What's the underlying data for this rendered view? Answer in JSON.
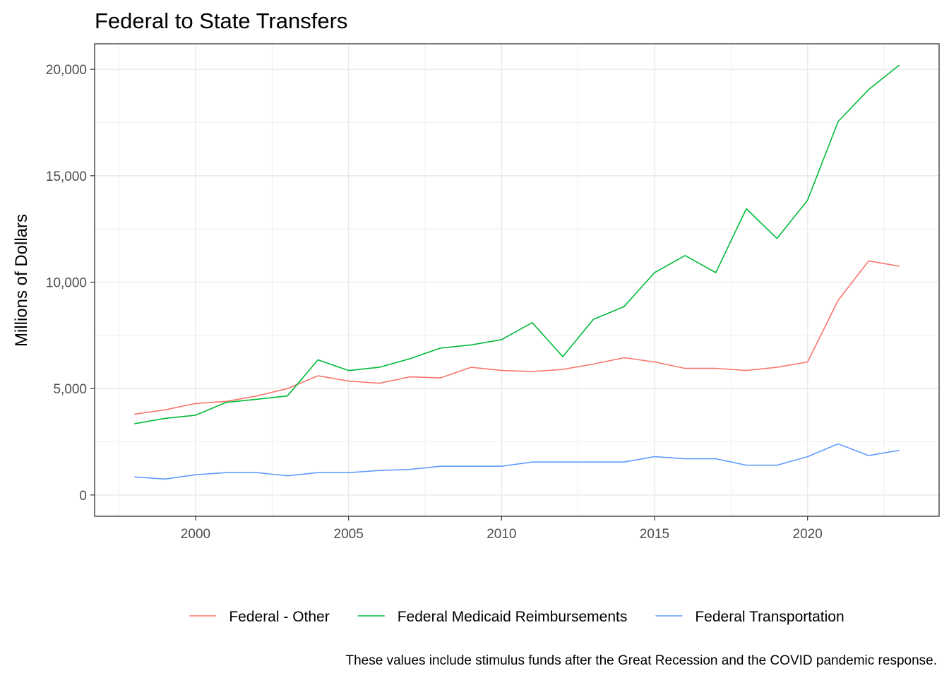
{
  "chart_data": {
    "type": "line",
    "title": "Federal to State Transfers",
    "xlabel": "",
    "ylabel": "Millions of Dollars",
    "caption": "These values include stimulus funds after the Great Recession and the COVID pandemic response.",
    "x": [
      1998,
      1999,
      2000,
      2001,
      2002,
      2003,
      2004,
      2005,
      2006,
      2007,
      2008,
      2009,
      2010,
      2011,
      2012,
      2013,
      2014,
      2015,
      2016,
      2017,
      2018,
      2019,
      2020,
      2021,
      2022,
      2023
    ],
    "xlim": [
      1996.7,
      2024.3
    ],
    "ylim": [
      -1000,
      21200
    ],
    "x_ticks": [
      2000,
      2005,
      2010,
      2015,
      2020
    ],
    "x_tick_labels": [
      "2000",
      "2005",
      "2010",
      "2015",
      "2020"
    ],
    "y_ticks": [
      0,
      5000,
      10000,
      15000,
      20000
    ],
    "y_tick_labels": [
      "0",
      "5,000",
      "10,000",
      "15,000",
      "20,000"
    ],
    "grid": true,
    "legend_position": "bottom",
    "series": [
      {
        "name": "Federal - Other",
        "color": "#F8766D",
        "values": [
          3800,
          4000,
          4300,
          4400,
          4650,
          5000,
          5600,
          5350,
          5250,
          5550,
          5500,
          6000,
          5850,
          5800,
          5900,
          6150,
          6450,
          6250,
          5950,
          5950,
          5850,
          6000,
          6250,
          9150,
          11000,
          10750
        ]
      },
      {
        "name": "Federal Medicaid Reimbursements",
        "color": "#00BA38",
        "values": [
          3350,
          3600,
          3750,
          4350,
          4500,
          4650,
          6350,
          5850,
          6000,
          6400,
          6900,
          7050,
          7300,
          8100,
          6500,
          8250,
          8850,
          10450,
          11250,
          10450,
          13450,
          12050,
          13850,
          17550,
          19050,
          20200
        ]
      },
      {
        "name": "Federal Transportation",
        "color": "#619CFF",
        "values": [
          850,
          750,
          950,
          1050,
          1050,
          900,
          1050,
          1050,
          1150,
          1200,
          1350,
          1350,
          1350,
          1550,
          1550,
          1550,
          1550,
          1800,
          1700,
          1700,
          1400,
          1400,
          1800,
          2400,
          1850,
          2100
        ]
      }
    ]
  }
}
